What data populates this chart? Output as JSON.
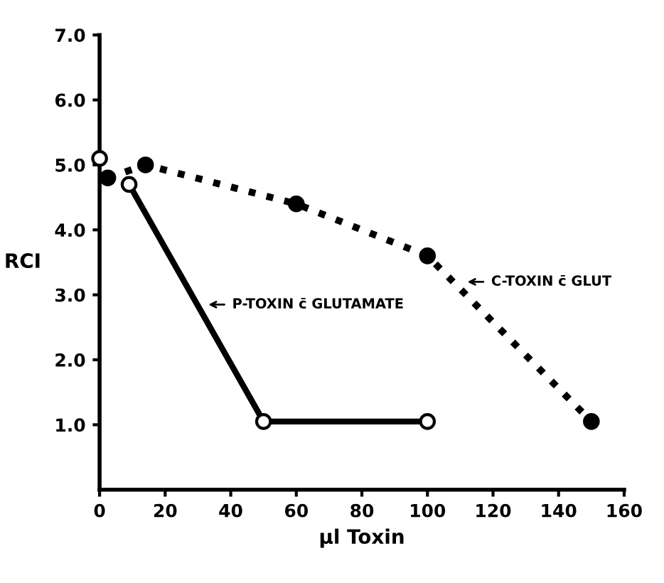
{
  "chart_data": {
    "type": "line",
    "xlabel": "µl Toxin",
    "ylabel": "RCI",
    "xlim": [
      0,
      160
    ],
    "ylim": [
      0,
      7
    ],
    "xticks": [
      0,
      20,
      40,
      60,
      80,
      100,
      120,
      140,
      160
    ],
    "yticks": [
      {
        "value": 1,
        "label": "1.0"
      },
      {
        "value": 2,
        "label": "2.0"
      },
      {
        "value": 3,
        "label": "3.0"
      },
      {
        "value": 4,
        "label": "4.0"
      },
      {
        "value": 5,
        "label": "5.0"
      },
      {
        "value": 6,
        "label": "6.0"
      },
      {
        "value": 7,
        "label": "7.0"
      }
    ],
    "grid": false,
    "series": [
      {
        "type": "scatter",
        "color": "#000000",
        "marker": "circle",
        "x": [
          0
        ],
        "values": [
          5.1
        ]
      },
      {
        "color": "#000000",
        "marker": "circle",
        "line_style": "solid",
        "x": [
          9,
          50,
          100
        ],
        "values": [
          4.7,
          1.05,
          1.05
        ]
      },
      {
        "color": "#000000",
        "marker": "circle",
        "line_style": "dotted",
        "x": [
          2.5,
          14,
          60,
          100,
          150
        ],
        "values": [
          4.8,
          5.0,
          4.4,
          3.6,
          1.05
        ]
      }
    ],
    "annotations": [
      {
        "text": "P-TOXIN c̄ GLUTAMATE",
        "x": 32,
        "y": 2.85
      },
      {
        "text": "C-TOXIN c̄ GLUT",
        "x": 111,
        "y": 3.2
      }
    ]
  }
}
